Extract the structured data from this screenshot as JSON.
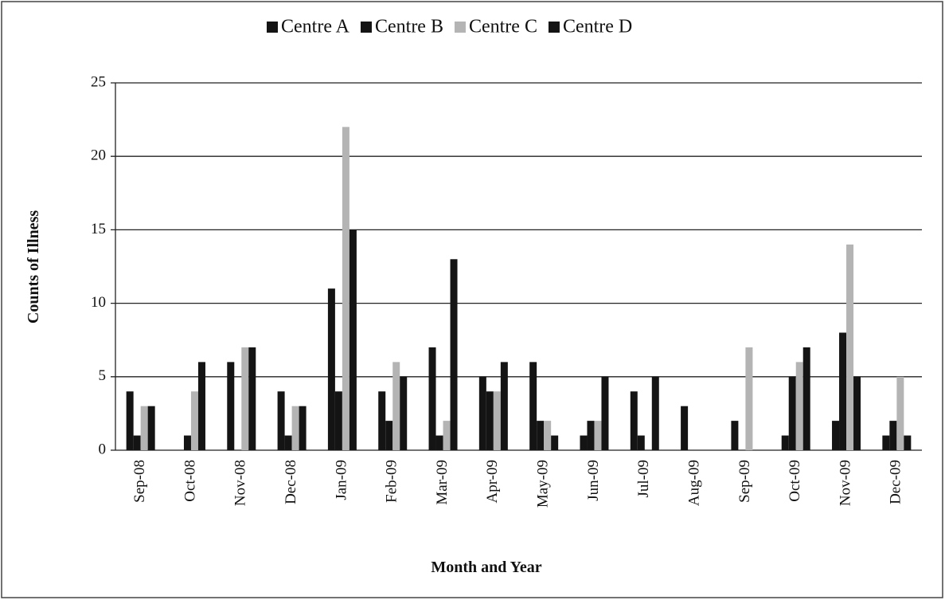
{
  "chart_data": {
    "type": "bar",
    "x_label": "Month and Year",
    "y_label": "Counts of Illness",
    "categories": [
      "Sep-08",
      "Oct-08",
      "Nov-08",
      "Dec-08",
      "Jan-09",
      "Feb-09",
      "Mar-09",
      "Apr-09",
      "May-09",
      "Jun-09",
      "Jul-09",
      "Aug-09",
      "Sep-09",
      "Oct-09",
      "Nov-09",
      "Dec-09"
    ],
    "series": [
      {
        "name": "Centre A",
        "color": "#141414",
        "values": [
          4,
          0,
          6,
          4,
          11,
          4,
          7,
          5,
          6,
          1,
          4,
          3,
          2,
          1,
          2,
          1
        ]
      },
      {
        "name": "Centre B",
        "color": "#141414",
        "values": [
          1,
          1,
          0,
          1,
          4,
          2,
          1,
          4,
          2,
          2,
          1,
          0,
          0,
          5,
          8,
          2
        ]
      },
      {
        "name": "Centre C",
        "color": "#b4b4b4",
        "values": [
          3,
          4,
          7,
          3,
          22,
          6,
          2,
          4,
          2,
          2,
          0,
          0,
          7,
          6,
          14,
          5
        ]
      },
      {
        "name": "Centre D",
        "color": "#141414",
        "values": [
          3,
          6,
          7,
          3,
          15,
          5,
          13,
          6,
          1,
          5,
          5,
          0,
          0,
          7,
          5,
          1
        ]
      }
    ],
    "ylim": [
      0,
      25
    ],
    "yticks": [
      0,
      5,
      10,
      15,
      20,
      25
    ],
    "grid": true,
    "legend": "top"
  }
}
